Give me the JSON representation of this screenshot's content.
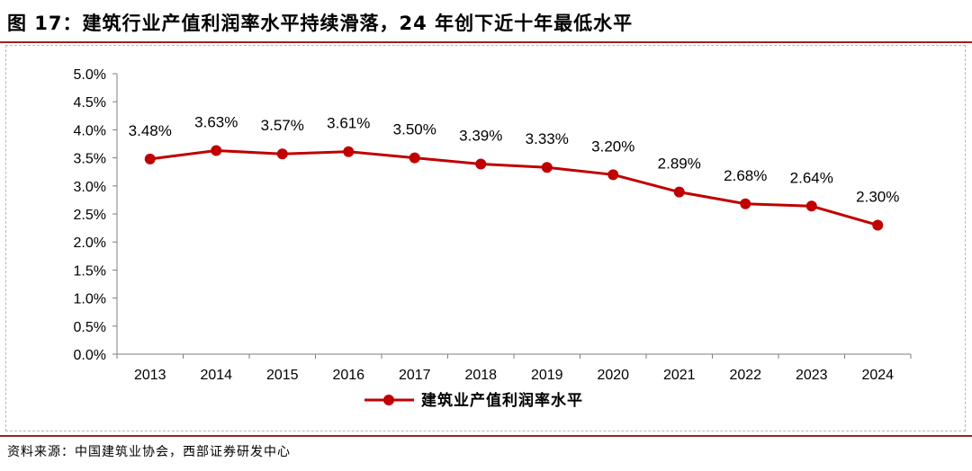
{
  "figure": {
    "title": "图 17：建筑行业产值利润率水平持续滑落，24 年创下近十年最低水平",
    "source": "资料来源：中国建筑业协会，西部证券研发中心"
  },
  "chart_data": {
    "type": "line",
    "title": "",
    "xlabel": "",
    "ylabel": "",
    "categories": [
      "2013",
      "2014",
      "2015",
      "2016",
      "2017",
      "2018",
      "2019",
      "2020",
      "2021",
      "2022",
      "2023",
      "2024"
    ],
    "series": [
      {
        "name": "建筑业产值利润率水平",
        "values": [
          3.48,
          3.63,
          3.57,
          3.61,
          3.5,
          3.39,
          3.33,
          3.2,
          2.89,
          2.68,
          2.64,
          2.3
        ],
        "labels": [
          "3.48%",
          "3.63%",
          "3.57%",
          "3.61%",
          "3.50%",
          "3.39%",
          "3.33%",
          "3.20%",
          "2.89%",
          "2.68%",
          "2.64%",
          "2.30%"
        ],
        "color": "#c00000"
      }
    ],
    "ylim": [
      0,
      5.0
    ],
    "yticks": [
      "0.0%",
      "0.5%",
      "1.0%",
      "1.5%",
      "2.0%",
      "2.5%",
      "3.0%",
      "3.5%",
      "4.0%",
      "4.5%",
      "5.0%"
    ],
    "grid": false,
    "legend": "bottom-center",
    "axis_color": "#7f7f7f"
  }
}
